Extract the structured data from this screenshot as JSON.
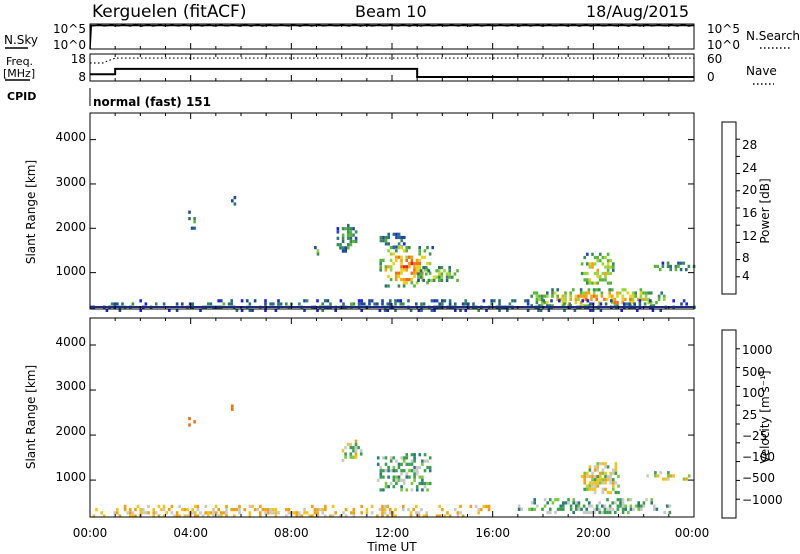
{
  "header": {
    "station": "Kerguelen (fitACF)",
    "beam": "Beam 10",
    "date": "18/Aug/2015"
  },
  "noise_panel": {
    "left_label": "N.Sky",
    "right_label": "N.Search",
    "left_ticks": [
      "10^5",
      "10^0"
    ],
    "right_ticks": [
      "10^5",
      "10^0"
    ]
  },
  "freq_panel": {
    "left_label_1": "Freq.",
    "left_label_2": "[MHz]",
    "right_label": "Nave",
    "left_ticks": [
      "18",
      "8"
    ],
    "right_ticks": [
      "60",
      "0"
    ]
  },
  "cpid": {
    "label": "CPID",
    "program": "normal (fast) 151"
  },
  "time_axis": {
    "label": "Time UT",
    "ticks": [
      "00:00",
      "04:00",
      "08:00",
      "12:00",
      "16:00",
      "20:00",
      "00:00"
    ]
  },
  "power_panel": {
    "ylabel": "Slant Range [km]",
    "yticks": [
      "4000",
      "3000",
      "2000",
      "1000"
    ],
    "colorbar_label": "Power [dB]",
    "colorbar_ticks": [
      "28",
      "24",
      "20",
      "16",
      "12",
      "8",
      "4"
    ],
    "colors": [
      "#1e1ee6",
      "#1e46a0",
      "#2a6e7a",
      "#3c8c5a",
      "#5ab43c",
      "#9bd23c",
      "#e6d21e",
      "#f0a014",
      "#f06e14",
      "#e61e1e"
    ]
  },
  "velocity_panel": {
    "ylabel": "Slant Range [km]",
    "yticks": [
      "4000",
      "3000",
      "2000",
      "1000"
    ],
    "colorbar_label": "Velocity [m s⁻¹]",
    "colorbar_ticks": [
      "1000",
      "500",
      "100",
      "25",
      "−25",
      "−100",
      "−500",
      "−1000"
    ],
    "colors": [
      "#1e2ad2",
      "#2850a0",
      "#2a7a7a",
      "#3c9c50",
      "#78c83c",
      "#c8c8c8",
      "#f0c31e",
      "#f0a014",
      "#f06e14",
      "#e61e1e"
    ]
  },
  "chart_data": [
    {
      "type": "line",
      "title": "N.Sky / N.Search",
      "x": [
        0,
        0.05,
        24
      ],
      "series": [
        {
          "name": "N.Sky",
          "values": [
            1,
            50000,
            50000
          ]
        },
        {
          "name": "N.Search",
          "values": [
            1,
            50000,
            50000
          ]
        }
      ],
      "xlim": [
        0,
        24
      ],
      "ylim_log": [
        1,
        100000
      ]
    },
    {
      "type": "line",
      "title": "Freq. / Nave",
      "series": [
        {
          "name": "Freq. [MHz]",
          "x": [
            0,
            1.0,
            1.0,
            13.0,
            13.0,
            24
          ],
          "values": [
            10.5,
            10.5,
            12.5,
            12.5,
            9.5,
            9.5
          ]
        },
        {
          "name": "Nave",
          "x": [
            0,
            0.5,
            1.0,
            24
          ],
          "values": [
            40,
            40,
            51,
            51
          ]
        }
      ],
      "xlim": [
        0,
        24
      ],
      "ylim_freq": [
        8,
        18
      ],
      "ylim_nave": [
        0,
        60
      ]
    },
    {
      "type": "heatmap",
      "title": "Power [dB]",
      "xlabel": "Time UT",
      "ylabel": "Slant Range [km]",
      "xlim": [
        0,
        24
      ],
      "ylim": [
        180,
        4600
      ],
      "colorbar": {
        "min": 0,
        "max": 32,
        "ticks": [
          4,
          8,
          12,
          16,
          20,
          24,
          28
        ]
      },
      "echo_regions": [
        {
          "t0": 3.9,
          "t1": 4.2,
          "r0": 2000,
          "r1": 2400,
          "power": 8
        },
        {
          "t0": 5.5,
          "t1": 5.8,
          "r0": 2550,
          "r1": 2800,
          "power": 6
        },
        {
          "t0": 8.8,
          "t1": 9.2,
          "r0": 1400,
          "r1": 1600,
          "power": 12
        },
        {
          "t0": 9.8,
          "t1": 10.6,
          "r0": 1500,
          "r1": 2100,
          "power": 10
        },
        {
          "t0": 11.3,
          "t1": 12.5,
          "r0": 1600,
          "r1": 1900,
          "power": 10
        },
        {
          "t0": 11.5,
          "t1": 13.6,
          "r0": 700,
          "r1": 1600,
          "power": 22
        },
        {
          "t0": 13.0,
          "t1": 14.8,
          "r0": 800,
          "r1": 1150,
          "power": 14
        },
        {
          "t0": 17.5,
          "t1": 22.8,
          "r0": 250,
          "r1": 650,
          "power": 20
        },
        {
          "t0": 19.5,
          "t1": 20.8,
          "r0": 700,
          "r1": 1450,
          "power": 18
        },
        {
          "t0": 22.3,
          "t1": 24.0,
          "r0": 1050,
          "r1": 1250,
          "power": 12
        },
        {
          "t0": 0.0,
          "t1": 24.0,
          "r0": 180,
          "r1": 400,
          "power": 8
        }
      ]
    },
    {
      "type": "heatmap",
      "title": "Velocity [m s⁻¹]",
      "xlabel": "Time UT",
      "ylabel": "Slant Range [km]",
      "xlim": [
        0,
        24
      ],
      "ylim": [
        180,
        4600
      ],
      "colorbar": {
        "ticks": [
          1000,
          500,
          100,
          25,
          -25,
          -100,
          -500,
          -1000
        ]
      },
      "echo_regions": [
        {
          "t0": 3.9,
          "t1": 4.2,
          "r0": 2200,
          "r1": 2400,
          "velocity": -300
        },
        {
          "t0": 5.5,
          "t1": 5.8,
          "r0": 2550,
          "r1": 2750,
          "velocity": -300
        },
        {
          "t0": 10.0,
          "t1": 10.8,
          "r0": 1450,
          "r1": 1900,
          "velocity": 0
        },
        {
          "t0": 11.4,
          "t1": 13.6,
          "r0": 800,
          "r1": 1600,
          "velocity": 60
        },
        {
          "t0": 17.0,
          "t1": 23.0,
          "r0": 250,
          "r1": 600,
          "velocity": 60
        },
        {
          "t0": 19.5,
          "t1": 21.0,
          "r0": 700,
          "r1": 1400,
          "velocity": 0
        },
        {
          "t0": 22.0,
          "t1": 24.0,
          "r0": 1050,
          "r1": 1200,
          "velocity": 0
        },
        {
          "t0": 0.0,
          "t1": 16.0,
          "r0": 180,
          "r1": 450,
          "velocity": -60
        }
      ]
    }
  ]
}
